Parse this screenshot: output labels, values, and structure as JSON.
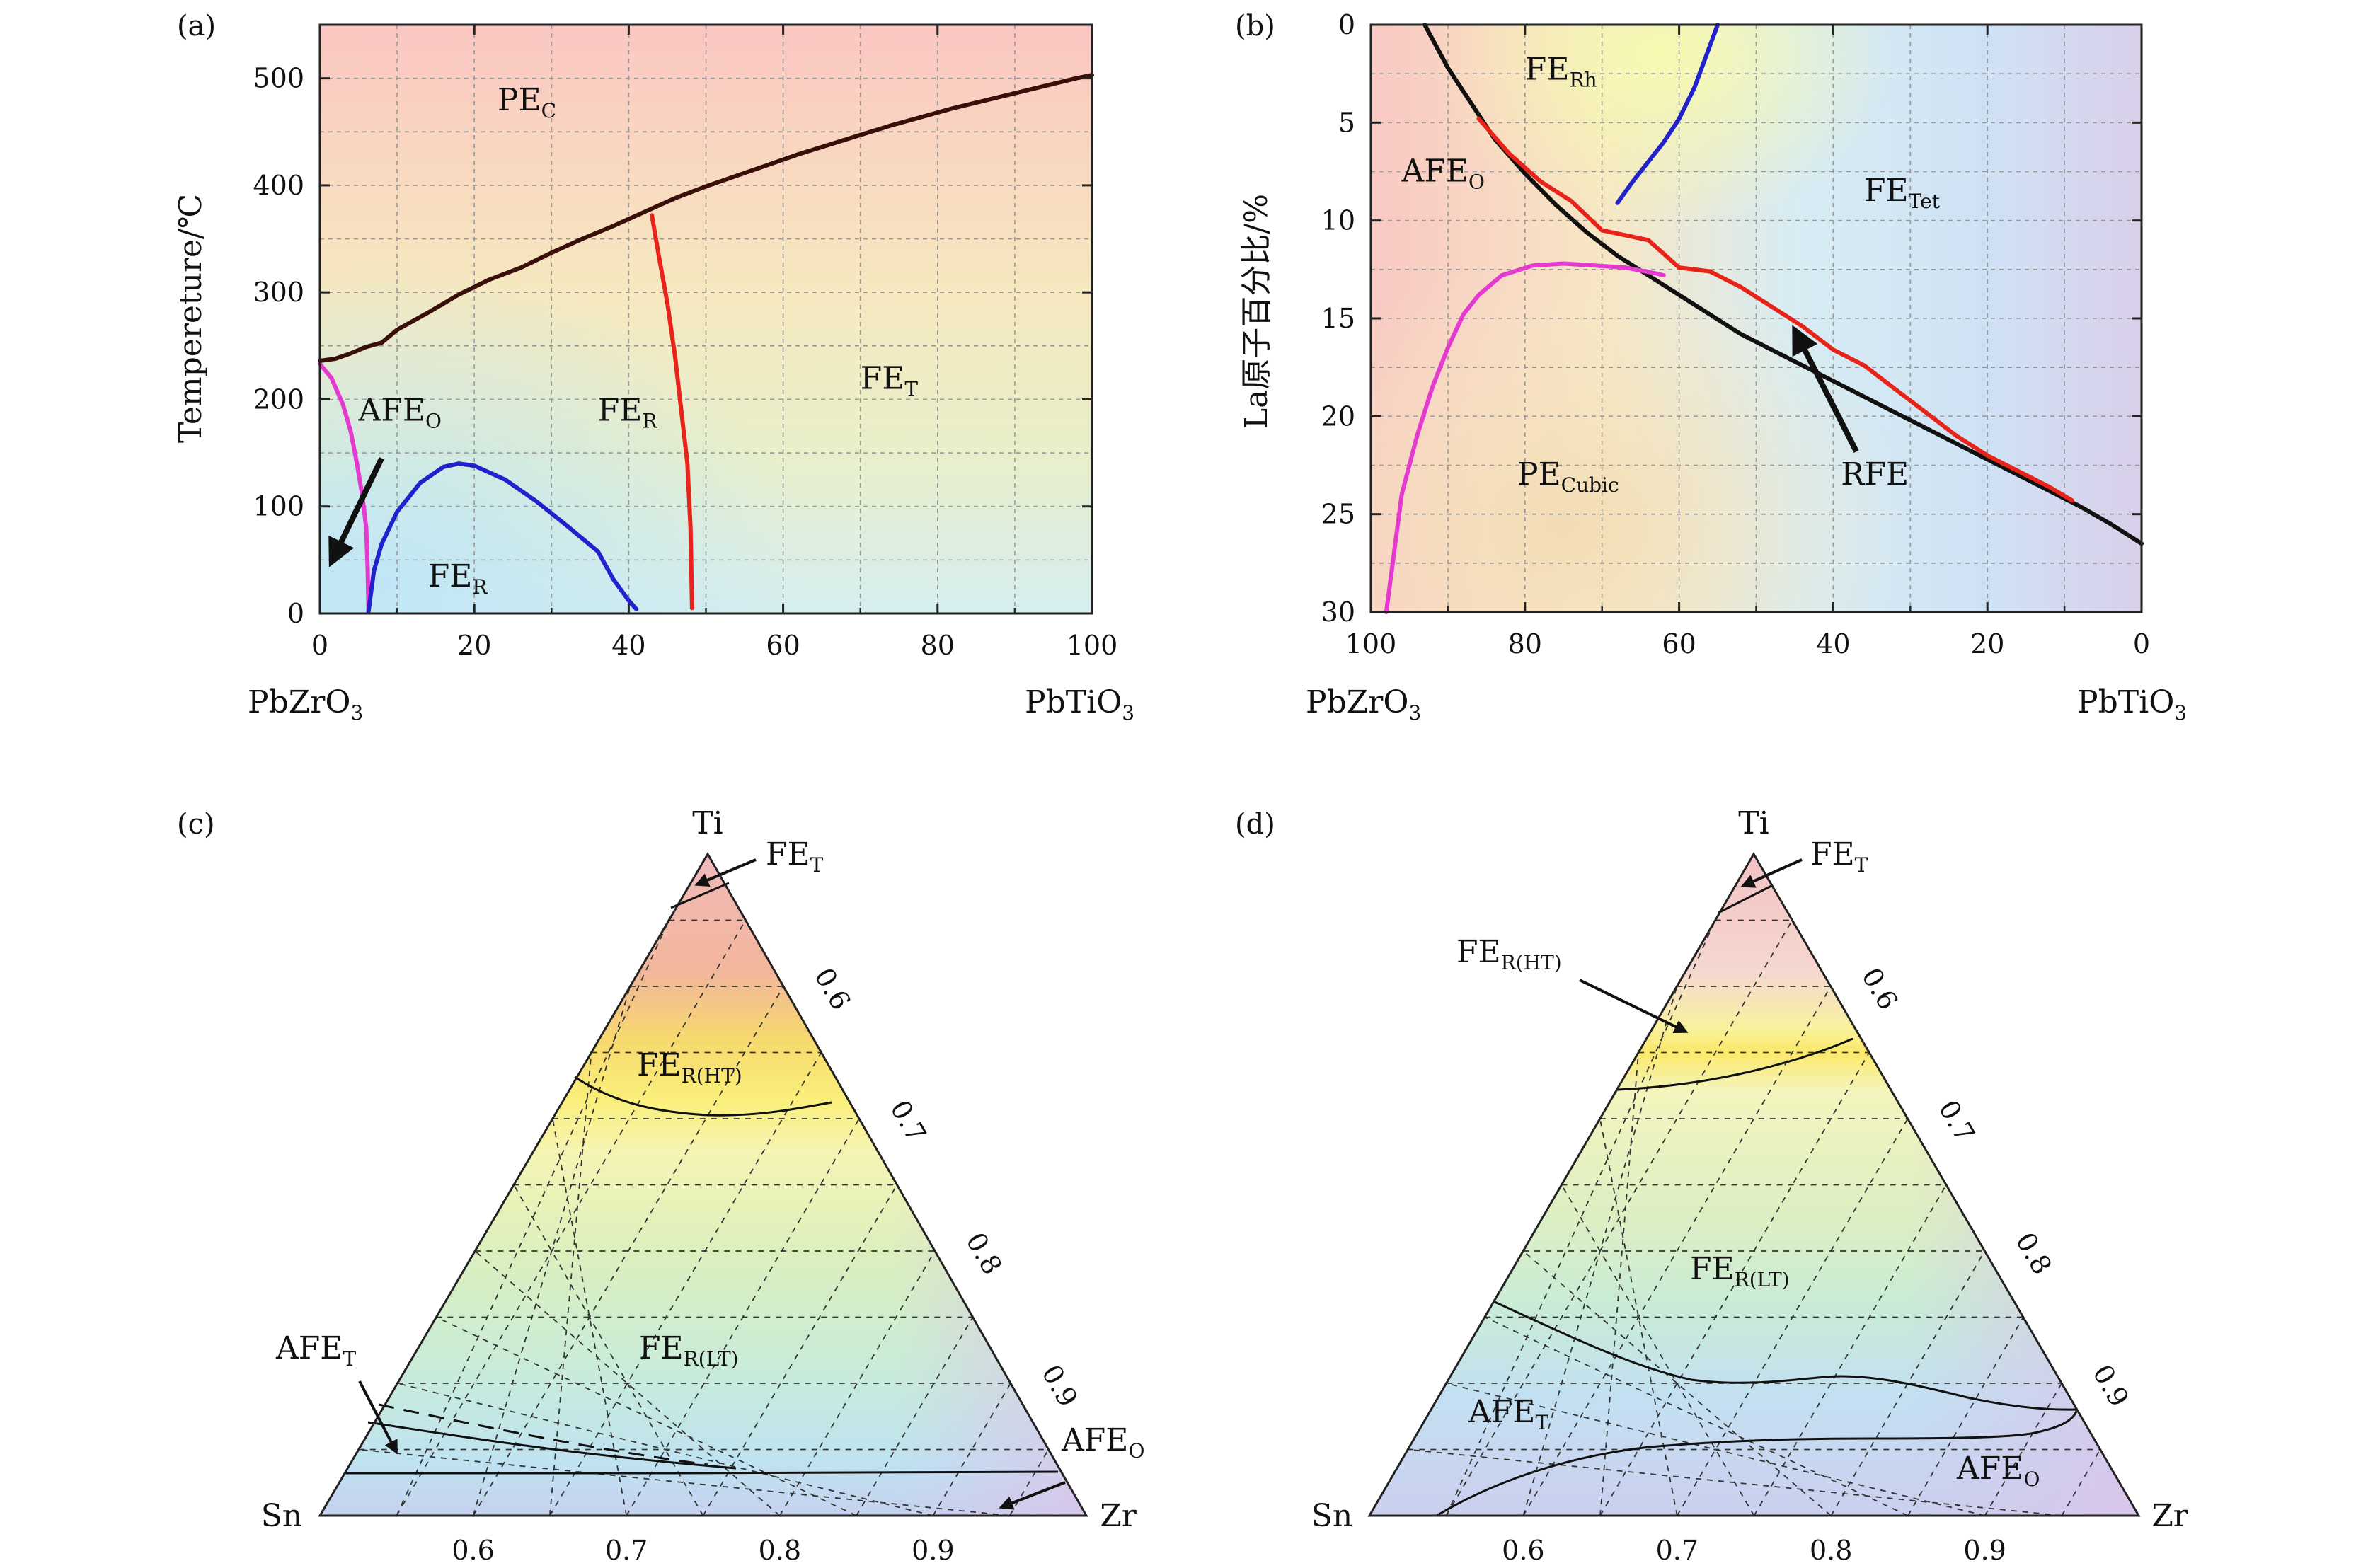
{
  "chart_data": [
    {
      "panel": "(a)",
      "type": "line",
      "xlim": [
        0,
        100
      ],
      "ylim": [
        0,
        550
      ],
      "ylabel": "Tempereture/℃",
      "x_ticks": [
        "0",
        "20",
        "40",
        "60",
        "80",
        "100"
      ],
      "y_ticks": [
        "0",
        "100",
        "200",
        "300",
        "400",
        "500"
      ],
      "x_end_labels": {
        "left": "PbZrO",
        "left_sub": "3",
        "right": "PbTiO",
        "right_sub": "3"
      },
      "regions": [
        {
          "main": "PE",
          "sub": "C",
          "at": [
            23,
            470
          ]
        },
        {
          "main": "AFE",
          "sub": "O",
          "at": [
            5,
            180
          ]
        },
        {
          "main": "FE",
          "sub": "R",
          "at": [
            36,
            180
          ]
        },
        {
          "main": "FE",
          "sub": "T",
          "at": [
            70,
            210
          ]
        },
        {
          "main": "FE",
          "sub": "R",
          "at": [
            14,
            25
          ]
        }
      ],
      "series": [
        {
          "color": "#3a0f0a",
          "points": [
            [
              0,
              236
            ],
            [
              2,
              238
            ],
            [
              4,
              243
            ],
            [
              6,
              249
            ],
            [
              8,
              253
            ],
            [
              10,
              265
            ],
            [
              14,
              281
            ],
            [
              18,
              298
            ],
            [
              22,
              312
            ],
            [
              26,
              323
            ],
            [
              30,
              337
            ],
            [
              34,
              350
            ],
            [
              38,
              362
            ],
            [
              42,
              375
            ],
            [
              46,
              388
            ],
            [
              50,
              399
            ],
            [
              54,
              409
            ],
            [
              58,
              419
            ],
            [
              62,
              429
            ],
            [
              66,
              438
            ],
            [
              70,
              447
            ],
            [
              74,
              456
            ],
            [
              78,
              464
            ],
            [
              82,
              472
            ],
            [
              86,
              479
            ],
            [
              90,
              486
            ],
            [
              94,
              493
            ],
            [
              98,
              500
            ],
            [
              100,
              503
            ]
          ]
        },
        {
          "color": "#e8231a",
          "points": [
            [
              43,
              372
            ],
            [
              44,
              330
            ],
            [
              45,
              290
            ],
            [
              46,
              240
            ],
            [
              46.8,
              190
            ],
            [
              47.6,
              140
            ],
            [
              48,
              80
            ],
            [
              48.2,
              5
            ]
          ]
        },
        {
          "color": "#e43ad0",
          "points": [
            [
              0,
              233
            ],
            [
              1.5,
              220
            ],
            [
              3,
              195
            ],
            [
              4,
              170
            ],
            [
              4.8,
              140
            ],
            [
              5.5,
              110
            ],
            [
              6,
              80
            ],
            [
              6.2,
              40
            ],
            [
              6.3,
              2
            ]
          ]
        },
        {
          "color": "#2222cc",
          "points": [
            [
              6.3,
              2
            ],
            [
              7,
              40
            ],
            [
              8,
              65
            ],
            [
              10,
              95
            ],
            [
              13,
              122
            ],
            [
              16,
              137
            ],
            [
              18,
              140
            ],
            [
              20,
              138
            ],
            [
              24,
              125
            ],
            [
              28,
              105
            ],
            [
              32,
              82
            ],
            [
              36,
              58
            ],
            [
              38,
              32
            ],
            [
              40,
              12
            ],
            [
              41,
              4
            ]
          ]
        }
      ],
      "arrows": [
        {
          "from": [
            8,
            145
          ],
          "to": [
            1.5,
            48
          ]
        }
      ]
    },
    {
      "panel": "(b)",
      "type": "line",
      "xlim": [
        100,
        0
      ],
      "ylim": [
        30,
        0
      ],
      "ylabel": "La原子百分比/%",
      "x_ticks": [
        "100",
        "80",
        "60",
        "40",
        "20",
        "0"
      ],
      "y_ticks": [
        "0",
        "5",
        "10",
        "15",
        "20",
        "25",
        "30"
      ],
      "x_end_labels": {
        "left": "PbZrO",
        "left_sub": "3",
        "right": "PbTiO",
        "right_sub": "3"
      },
      "regions": [
        {
          "main": "FE",
          "sub": "Rh",
          "at": [
            80,
            2.8
          ]
        },
        {
          "main": "AFE",
          "sub": "O",
          "at": [
            96,
            8
          ]
        },
        {
          "main": "FE",
          "sub": "Tet",
          "at": [
            36,
            9
          ]
        },
        {
          "main": "PE",
          "sub": "Cubic",
          "at": [
            81,
            23.5
          ]
        },
        {
          "main": "RFE",
          "sub": "",
          "at": [
            39,
            23.5
          ]
        }
      ],
      "series": [
        {
          "color": "#111111",
          "points": [
            [
              93,
              0
            ],
            [
              90,
              2.2
            ],
            [
              87,
              4
            ],
            [
              84,
              5.8
            ],
            [
              80,
              7.6
            ],
            [
              76,
              9.2
            ],
            [
              72,
              10.6
            ],
            [
              68,
              11.8
            ],
            [
              64,
              12.8
            ],
            [
              60,
              13.8
            ],
            [
              56,
              14.8
            ],
            [
              52,
              15.8
            ],
            [
              48,
              16.6
            ],
            [
              44,
              17.4
            ],
            [
              40,
              18.2
            ],
            [
              36,
              19
            ],
            [
              32,
              19.8
            ],
            [
              28,
              20.6
            ],
            [
              24,
              21.4
            ],
            [
              20,
              22.2
            ],
            [
              16,
              23
            ],
            [
              12,
              23.8
            ],
            [
              8,
              24.6
            ],
            [
              4,
              25.5
            ],
            [
              0,
              26.5
            ]
          ]
        },
        {
          "color": "#e8231a",
          "points": [
            [
              86,
              4.8
            ],
            [
              82,
              6.6
            ],
            [
              78,
              8
            ],
            [
              74,
              9
            ],
            [
              70,
              10.5
            ],
            [
              64,
              11
            ],
            [
              60,
              12.4
            ],
            [
              56,
              12.6
            ],
            [
              52,
              13.4
            ],
            [
              48,
              14.4
            ],
            [
              44,
              15.4
            ],
            [
              40,
              16.6
            ],
            [
              36,
              17.4
            ],
            [
              32,
              18.6
            ],
            [
              28,
              19.8
            ],
            [
              24,
              21
            ],
            [
              20,
              22
            ],
            [
              16,
              22.8
            ],
            [
              12,
              23.6
            ],
            [
              9,
              24.3
            ]
          ]
        },
        {
          "color": "#2222cc",
          "points": [
            [
              68,
              9.1
            ],
            [
              66,
              8
            ],
            [
              64,
              7
            ],
            [
              62,
              6
            ],
            [
              60,
              4.8
            ],
            [
              58,
              3.2
            ],
            [
              56.5,
              1.6
            ],
            [
              55,
              0
            ]
          ]
        },
        {
          "color": "#e43ad0",
          "points": [
            [
              98,
              30
            ],
            [
              97,
              27
            ],
            [
              96,
              24
            ],
            [
              94,
              21
            ],
            [
              92,
              18.5
            ],
            [
              90,
              16.5
            ],
            [
              88,
              14.8
            ],
            [
              86,
              13.8
            ],
            [
              83,
              12.8
            ],
            [
              79,
              12.3
            ],
            [
              75,
              12.2
            ],
            [
              71,
              12.3
            ],
            [
              67,
              12.4
            ],
            [
              63,
              12.7
            ],
            [
              62,
              12.8
            ]
          ]
        }
      ],
      "arrows": [
        {
          "from": [
            37,
            21.8
          ],
          "to": [
            45,
            15.6
          ]
        }
      ]
    },
    {
      "panel": "(c)",
      "type": "ternary",
      "vertices": {
        "top": "Ti",
        "left": "Sn",
        "right": "Zr"
      },
      "bottom_ticks": [
        "0.6",
        "0.7",
        "0.8",
        "0.9"
      ],
      "side_ticks": [
        "0.6",
        "0.7",
        "0.8",
        "0.9"
      ],
      "regions": [
        {
          "main": "FE",
          "sub": "T",
          "label_at": "top-right"
        },
        {
          "main": "FE",
          "sub": "R(HT)"
        },
        {
          "main": "FE",
          "sub": "R(LT)"
        },
        {
          "main": "AFE",
          "sub": "T",
          "label_at": "lower-left"
        },
        {
          "main": "AFE",
          "sub": "O",
          "label_at": "lower-right"
        }
      ]
    },
    {
      "panel": "(d)",
      "type": "ternary",
      "vertices": {
        "top": "Ti",
        "left": "Sn",
        "right": "Zr"
      },
      "bottom_ticks": [
        "0.6",
        "0.7",
        "0.8",
        "0.9"
      ],
      "side_ticks": [
        "0.6",
        "0.7",
        "0.8",
        "0.9"
      ],
      "regions": [
        {
          "main": "FE",
          "sub": "T",
          "label_at": "top-right"
        },
        {
          "main": "FE",
          "sub": "R(HT)",
          "label_at": "upper-left"
        },
        {
          "main": "FE",
          "sub": "R(LT)"
        },
        {
          "main": "AFE",
          "sub": "T"
        },
        {
          "main": "AFE",
          "sub": "O"
        }
      ]
    }
  ]
}
